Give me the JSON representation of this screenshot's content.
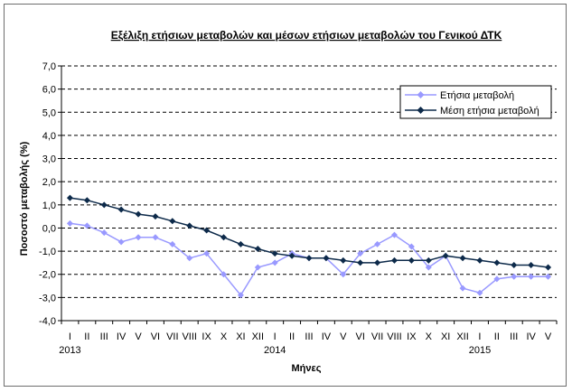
{
  "chart_data": {
    "type": "line",
    "title": "Εξέλιξη ετήσιων μεταβολών και μέσων ετήσιων μεταβολών του Γενικού ΔΤΚ",
    "xlabel": "Μήνες",
    "ylabel": "Ποσοστό μεταβολής (%)",
    "ylim": [
      -4.0,
      7.0
    ],
    "ytick_step": 1.0,
    "ytick_labels": [
      "7,0",
      "6,0",
      "5,0",
      "4,0",
      "3,0",
      "2,0",
      "1,0",
      "0,0",
      "-1,0",
      "-2,0",
      "-3,0",
      "-4,0"
    ],
    "grid": "horizontal dashed",
    "legend_position": "top-right",
    "categories": [
      "I",
      "II",
      "III",
      "IV",
      "V",
      "VI",
      "VII",
      "VIII",
      "IX",
      "X",
      "XI",
      "XII",
      "I",
      "II",
      "III",
      "IV",
      "V",
      "VI",
      "VII",
      "VIII",
      "IX",
      "X",
      "XI",
      "XII",
      "I",
      "II",
      "III",
      "IV",
      "V"
    ],
    "year_labels": [
      {
        "index": 0,
        "label": "2013"
      },
      {
        "index": 12,
        "label": "2014"
      },
      {
        "index": 24,
        "label": "2015"
      }
    ],
    "series": [
      {
        "name": "Ετήσια μεταβολή",
        "color": "#9999ff",
        "marker": "diamond",
        "values": [
          0.2,
          0.1,
          -0.2,
          -0.6,
          -0.4,
          -0.4,
          -0.7,
          -1.3,
          -1.1,
          -2.0,
          -2.9,
          -1.7,
          -1.5,
          -1.1,
          -1.3,
          -1.3,
          -2.0,
          -1.1,
          -0.7,
          -0.3,
          -0.8,
          -1.7,
          -1.2,
          -2.6,
          -2.8,
          -2.2,
          -2.1,
          -2.1,
          -2.1
        ]
      },
      {
        "name": "Μέση ετήσια μεταβολή",
        "color": "#0d2a4a",
        "marker": "diamond",
        "values": [
          1.3,
          1.2,
          1.0,
          0.8,
          0.6,
          0.5,
          0.3,
          0.1,
          -0.1,
          -0.4,
          -0.7,
          -0.9,
          -1.1,
          -1.2,
          -1.3,
          -1.3,
          -1.4,
          -1.5,
          -1.5,
          -1.4,
          -1.4,
          -1.4,
          -1.2,
          -1.3,
          -1.4,
          -1.5,
          -1.6,
          -1.6,
          -1.7
        ]
      }
    ]
  }
}
